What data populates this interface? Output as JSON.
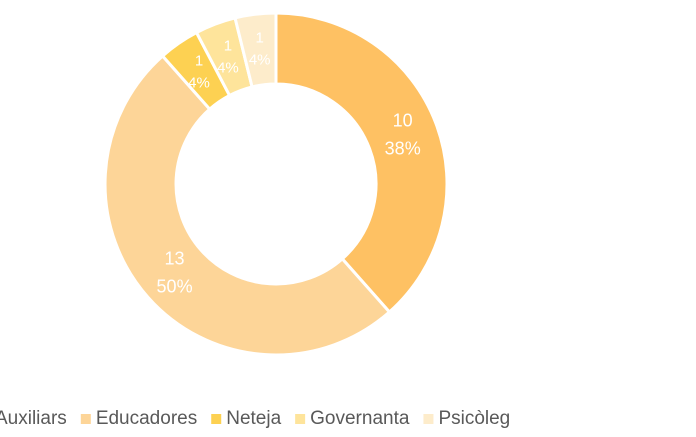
{
  "chart_data": {
    "type": "donut",
    "categories": [
      "Auxiliars",
      "Educadores",
      "Neteja",
      "Governanta",
      "Psicòleg"
    ],
    "values": [
      10,
      13,
      1,
      1,
      1
    ],
    "percent_labels": [
      "38%",
      "50%",
      "4%",
      "4%",
      "4%"
    ],
    "colors": [
      "#fec163",
      "#fdd598",
      "#fdd152",
      "#fee49b",
      "#fdeccb"
    ],
    "legend": "bottom"
  }
}
